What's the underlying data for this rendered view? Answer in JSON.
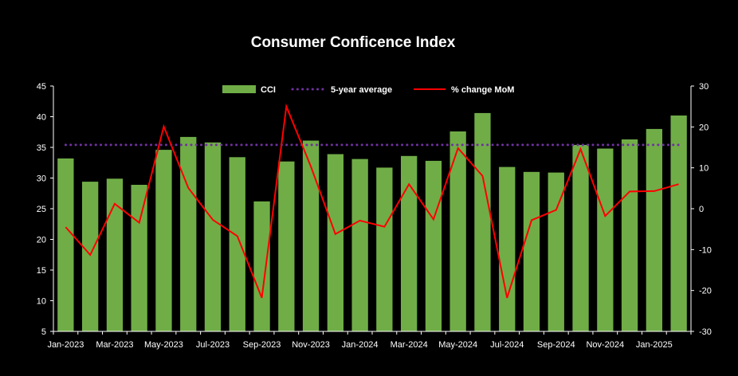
{
  "chart_data": {
    "type": "bar",
    "title": "Consumer Conficence Index",
    "categories": [
      "Jan-2023",
      "Feb-2023",
      "Mar-2023",
      "Apr-2023",
      "May-2023",
      "Jun-2023",
      "Jul-2023",
      "Aug-2023",
      "Sep-2023",
      "Oct-2023",
      "Nov-2023",
      "Dec-2023",
      "Jan-2024",
      "Feb-2024",
      "Mar-2024",
      "Apr-2024",
      "May-2024",
      "Jun-2024",
      "Jul-2024",
      "Aug-2024",
      "Sep-2024",
      "Oct-2024",
      "Nov-2024",
      "Dec-2024",
      "Jan-2025",
      "Feb-2025"
    ],
    "x_tick_labels": [
      "Jan-2023",
      "Mar-2023",
      "May-2023",
      "Jul-2023",
      "Sep-2023",
      "Nov-2023",
      "Jan-2024",
      "Mar-2024",
      "May-2024",
      "Jul-2024",
      "Sep-2024",
      "Nov-2024",
      "Jan-2025"
    ],
    "series": [
      {
        "name": "CCI",
        "type": "bar",
        "axis": "left",
        "color": "#70ad47",
        "values": [
          33.2,
          29.4,
          29.9,
          28.9,
          34.6,
          36.7,
          35.8,
          33.4,
          26.2,
          32.7,
          36.1,
          33.9,
          33.1,
          31.7,
          33.6,
          32.8,
          37.6,
          40.6,
          31.8,
          31.0,
          30.9,
          35.4,
          34.8,
          36.3,
          38.0,
          40.2
        ]
      },
      {
        "name": "5-year average",
        "type": "line",
        "style": "dotted",
        "axis": "left",
        "color": "#7030a0",
        "values": [
          35.4,
          35.4,
          35.4,
          35.4,
          35.4,
          35.4,
          35.4,
          35.4,
          35.4,
          35.4,
          35.4,
          35.4,
          35.4,
          35.4,
          35.4,
          35.4,
          35.4,
          35.4,
          35.4,
          35.4,
          35.4,
          35.4,
          35.4,
          35.4,
          35.4,
          35.4
        ]
      },
      {
        "name": "% change MoM",
        "type": "line",
        "style": "solid",
        "axis": "right",
        "color": "#ff0000",
        "values": [
          -4.5,
          -11.3,
          1.2,
          -3.4,
          20.1,
          5.1,
          -2.7,
          -6.7,
          -21.8,
          25.0,
          10.3,
          -6.2,
          -2.9,
          -4.4,
          6.0,
          -2.6,
          14.8,
          8.0,
          -21.8,
          -2.8,
          -0.3,
          14.6,
          -1.8,
          4.2,
          4.3,
          6.0
        ]
      }
    ],
    "y_left": {
      "ylim": [
        5,
        45
      ],
      "ticks": [
        5,
        10,
        15,
        20,
        25,
        30,
        35,
        40,
        45
      ]
    },
    "y_right": {
      "ylim": [
        -30,
        30
      ],
      "ticks": [
        -30,
        -20,
        -10,
        0,
        10,
        20,
        30
      ]
    },
    "legend_position": "top-center",
    "grid": false,
    "axis_color": "#ffffff"
  }
}
